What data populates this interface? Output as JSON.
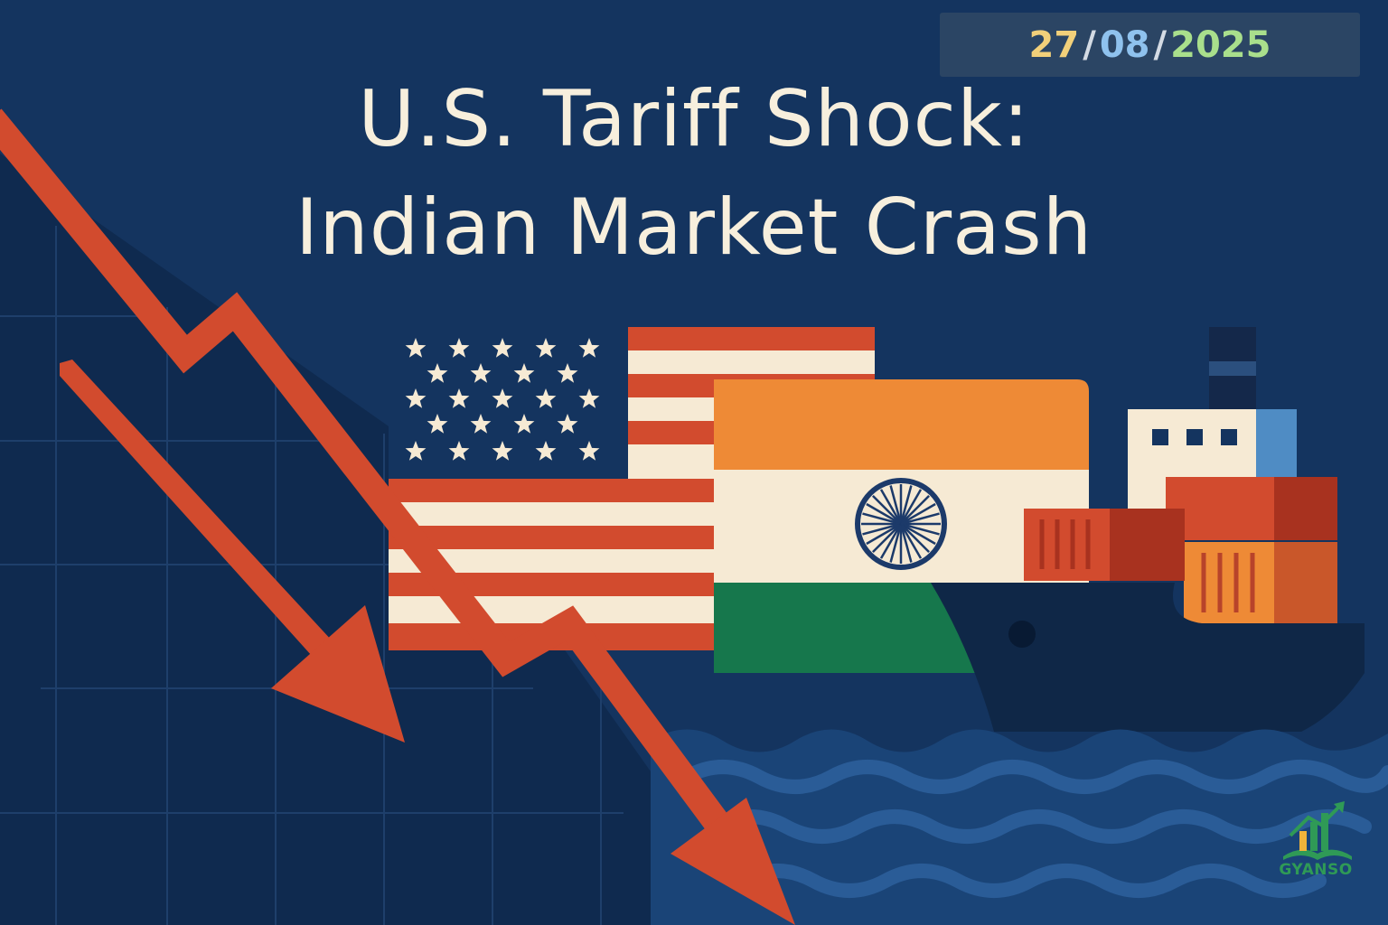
{
  "header": {
    "date": {
      "day": "27",
      "month": "08",
      "year": "2025",
      "separator": "/"
    },
    "title_line1": "U.S. Tariff Shock:",
    "title_line2": "Indian Market Crash"
  },
  "branding": {
    "logo_text": "GYANSO"
  },
  "illustration": {
    "items": [
      "grid-background",
      "downward-red-arrow",
      "secondary-red-arrow",
      "us-flag",
      "india-flag",
      "cargo-ship",
      "shipping-containers",
      "ocean-waves"
    ]
  },
  "colors": {
    "background": "#14345f",
    "background_dark": "#0f2a4f",
    "arrow": "#d24b2e",
    "title_text": "#f7efdd",
    "saffron": "#ee8a36",
    "india_green": "#16774c",
    "chakra_blue": "#1c3a6a",
    "flag_white": "#f6ead4",
    "wave": "#1f4f8a"
  }
}
